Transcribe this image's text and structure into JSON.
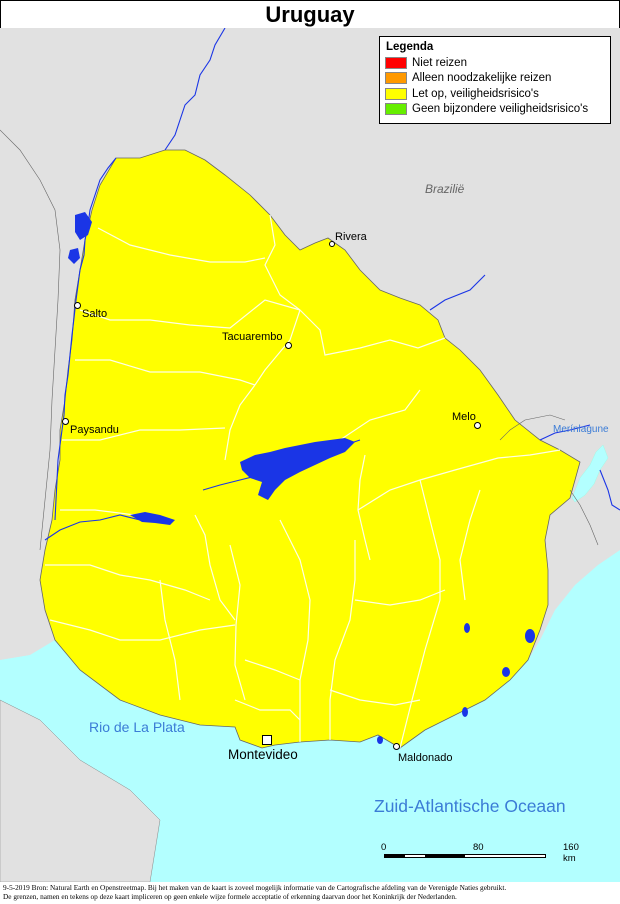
{
  "title": "Uruguay",
  "legend": {
    "title": "Legenda",
    "items": [
      {
        "label": "Niet reizen",
        "color": "#ff0000"
      },
      {
        "label": "Alleen noodzakelijke reizen",
        "color": "#ff9900"
      },
      {
        "label": "Let op, veiligheidsrisico's",
        "color": "#ffff00"
      },
      {
        "label": "Geen bijzondere veiligheidsrisico's",
        "color": "#66ee00"
      }
    ]
  },
  "colors": {
    "country": "#ffff00",
    "land": "#e1e1e1",
    "water": "#b3ffff",
    "river": "#1a35e6",
    "border": "#555555"
  },
  "places": {
    "brazil": "Brazilië",
    "merin": "Merínlagune",
    "rio_plata": "Rio de La Plata",
    "ocean": "Zuid-Atlantische Oceaan",
    "cities": {
      "rivera": "Rivera",
      "salto": "Salto",
      "tacuarembo": "Tacuarembo",
      "paysandu": "Paysandu",
      "melo": "Melo",
      "montevideo": "Montevideo",
      "maldonado": "Maldonado"
    }
  },
  "scale": {
    "t0": "0",
    "t1": "80",
    "t2": "160 km"
  },
  "footer": {
    "line1": "9-5-2019 Bron: Natural Earth en Openstreetmap. Bij het maken van de kaart is zoveel mogelijk informatie van de Cartografische afdeling van de Verenigde Naties gebruikt.",
    "line2": "De grenzen, namen en tekens op deze kaart impliceren op geen enkele wijze formele acceptatie of erkenning daarvan door het Koninkrijk der Nederlanden."
  }
}
